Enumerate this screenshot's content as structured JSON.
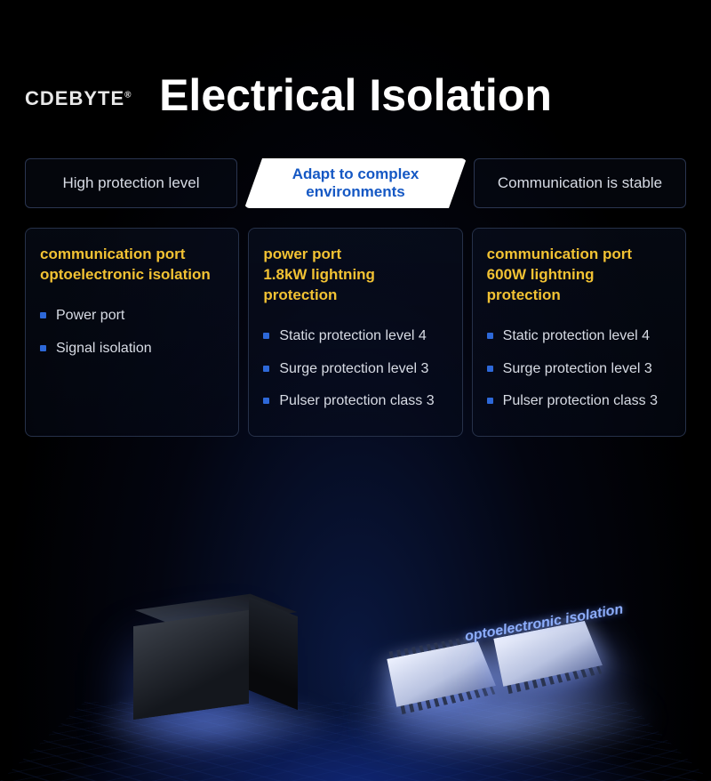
{
  "brand": "CDEBYTE",
  "title": "Electrical Isolation",
  "tabs": [
    {
      "label": "High protection level",
      "active": false
    },
    {
      "label": "Adapt to\ncomplex environments",
      "active": true
    },
    {
      "label": "Communication is stable",
      "active": false
    }
  ],
  "cards": [
    {
      "heading_line1": "communication port",
      "heading_line2": "optoelectronic isolation",
      "items": [
        "Power port",
        "Signal isolation"
      ]
    },
    {
      "heading_line1": "power port",
      "heading_line2": "1.8kW lightning protection",
      "items": [
        "Static protection level 4",
        "Surge protection level 3",
        "Pulser protection class 3"
      ]
    },
    {
      "heading_line1": "communication port",
      "heading_line2": "600W lightning protection",
      "items": [
        "Static protection level 4",
        "Surge protection level 3",
        "Pulser protection class 3"
      ]
    }
  ],
  "chip_label": "optoelectronic isolation",
  "colors": {
    "background": "#000000",
    "title_text": "#ffffff",
    "tab_border": "#2a3550",
    "tab_text": "#d8dce5",
    "tab_active_bg": "#ffffff",
    "tab_active_text": "#1558c4",
    "card_border": "#263149",
    "card_heading": "#f2c233",
    "bullet": "#2d68d8",
    "body_text": "#d8dce5",
    "glow": "#8fb0ff"
  },
  "typography": {
    "title_fontsize": 50,
    "tab_fontsize": 17,
    "card_heading_fontsize": 17,
    "list_fontsize": 16,
    "brand_fontsize": 22
  }
}
